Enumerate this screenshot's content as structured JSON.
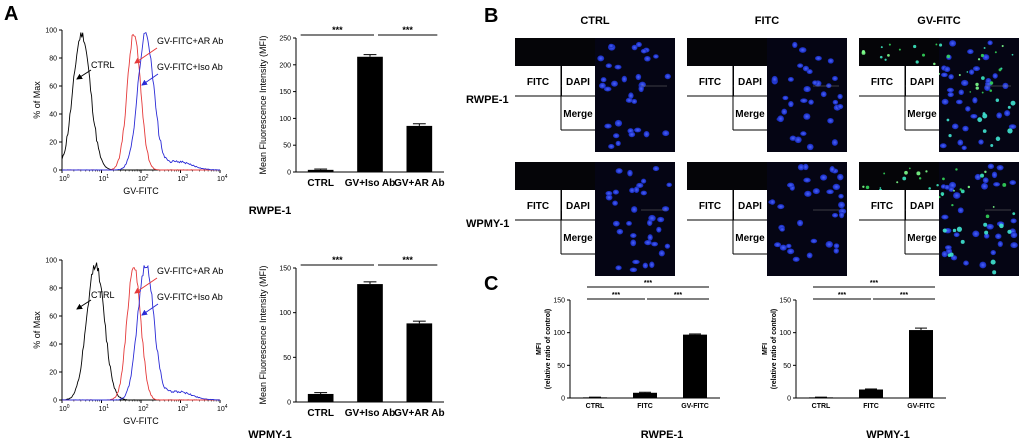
{
  "panels": {
    "A": "A",
    "B": "B",
    "C": "C"
  },
  "panel_a": {
    "rows": [
      {
        "cell": "RWPE-1",
        "histogram": {
          "ylabel": "% of Max",
          "xlabel": "GV-FITC",
          "yticks": [
            "0",
            "20",
            "40",
            "60",
            "80",
            "100"
          ],
          "xticks_exp": [
            "0",
            "1",
            "2",
            "3",
            "4"
          ],
          "xtick_base": "10",
          "labels": {
            "ctrl": "CTRL",
            "ar": "GV-FITC+AR Ab",
            "iso": "GV-FITC+Iso Ab"
          },
          "colors": {
            "ctrl": "#000000",
            "ar": "#e53a3a",
            "iso": "#2b2bd6"
          }
        },
        "bar": {
          "ylabel": "Mean Fluorescence Intensity (MFI)",
          "yticks": [
            "0",
            "50",
            "100",
            "150",
            "200",
            "250"
          ],
          "ymax": 250,
          "categories": [
            "CTRL",
            "GV+Iso Ab",
            "GV+AR Ab"
          ],
          "values": [
            4,
            215,
            86
          ],
          "errors": [
            1.5,
            4,
            4
          ],
          "sig": [
            "***",
            "***"
          ]
        }
      },
      {
        "cell": "WPMY-1",
        "histogram": {
          "ylabel": "% of Max",
          "xlabel": "GV-FITC",
          "yticks": [
            "0",
            "20",
            "40",
            "60",
            "80",
            "100"
          ],
          "xticks_exp": [
            "0",
            "1",
            "2",
            "3",
            "4"
          ],
          "xtick_base": "10",
          "labels": {
            "ctrl": "CTRL",
            "ar": "GV-FITC+AR Ab",
            "iso": "GV-FITC+Iso Ab"
          },
          "colors": {
            "ctrl": "#000000",
            "ar": "#e53a3a",
            "iso": "#2b2bd6"
          }
        },
        "bar": {
          "ylabel": "Mean Fluorescence Intensity (MFI)",
          "yticks": [
            "0",
            "50",
            "100",
            "150"
          ],
          "ymax": 150,
          "categories": [
            "CTRL",
            "GV+Iso Ab",
            "GV+AR Ab"
          ],
          "values": [
            9,
            132,
            88
          ],
          "errors": [
            1.5,
            2.5,
            2.5
          ],
          "sig": [
            "***",
            "***"
          ]
        }
      }
    ]
  },
  "panel_b": {
    "columns": [
      "CTRL",
      "FITC",
      "GV-FITC"
    ],
    "rows": [
      "RWPE-1",
      "WPMY-1"
    ],
    "quad_labels": {
      "fitc": "FITC",
      "dapi": "DAPI",
      "merge": "Merge"
    }
  },
  "panel_c": [
    {
      "cell": "RWPE-1",
      "ylabel": "MFI (relative ratio of control)",
      "ylabel_line1": "MFI",
      "ylabel_line2": "(relative ratio of control)",
      "yticks": [
        "0",
        "50",
        "100",
        "150"
      ],
      "ymax": 150,
      "categories": [
        "CTRL",
        "FITC",
        "GV-FITC"
      ],
      "values": [
        1,
        8,
        97
      ],
      "errors": [
        0.3,
        0.8,
        1.0
      ],
      "sig": [
        "***",
        "***",
        "***"
      ]
    },
    {
      "cell": "WPMY-1",
      "ylabel": "MFI (relative ratio of control)",
      "ylabel_line1": "MFI",
      "ylabel_line2": "(relative ratio of control)",
      "yticks": [
        "0",
        "50",
        "100",
        "150"
      ],
      "ymax": 150,
      "categories": [
        "CTRL",
        "FITC",
        "GV-FITC"
      ],
      "values": [
        1,
        13,
        104
      ],
      "errors": [
        0.3,
        0.8,
        3.0
      ],
      "sig": [
        "***",
        "***",
        "***"
      ]
    }
  ],
  "chart_data": [
    {
      "type": "bar",
      "categories": [
        "CTRL",
        "GV+Iso Ab",
        "GV+AR Ab"
      ],
      "values": [
        4,
        215,
        86
      ],
      "ylabel": "Mean Fluorescence Intensity (MFI)",
      "ylim": [
        0,
        250
      ],
      "xlabel": "RWPE-1"
    },
    {
      "type": "bar",
      "categories": [
        "CTRL",
        "GV+Iso Ab",
        "GV+AR Ab"
      ],
      "values": [
        9,
        132,
        88
      ],
      "ylabel": "Mean Fluorescence Intensity (MFI)",
      "ylim": [
        0,
        150
      ],
      "xlabel": "WPMY-1"
    },
    {
      "type": "bar",
      "categories": [
        "CTRL",
        "FITC",
        "GV-FITC"
      ],
      "values": [
        1,
        8,
        97
      ],
      "ylabel": "MFI (relative ratio of control)",
      "ylim": [
        0,
        150
      ],
      "xlabel": "RWPE-1"
    },
    {
      "type": "bar",
      "categories": [
        "CTRL",
        "FITC",
        "GV-FITC"
      ],
      "values": [
        1,
        13,
        104
      ],
      "ylabel": "MFI (relative ratio of control)",
      "ylim": [
        0,
        150
      ],
      "xlabel": "WPMY-1"
    },
    {
      "type": "line",
      "xlabel": "GV-FITC",
      "ylabel": "% of Max",
      "ylim": [
        0,
        100
      ],
      "series": [
        {
          "name": "CTRL"
        },
        {
          "name": "GV-FITC+AR Ab"
        },
        {
          "name": "GV-FITC+Iso Ab"
        }
      ]
    }
  ]
}
